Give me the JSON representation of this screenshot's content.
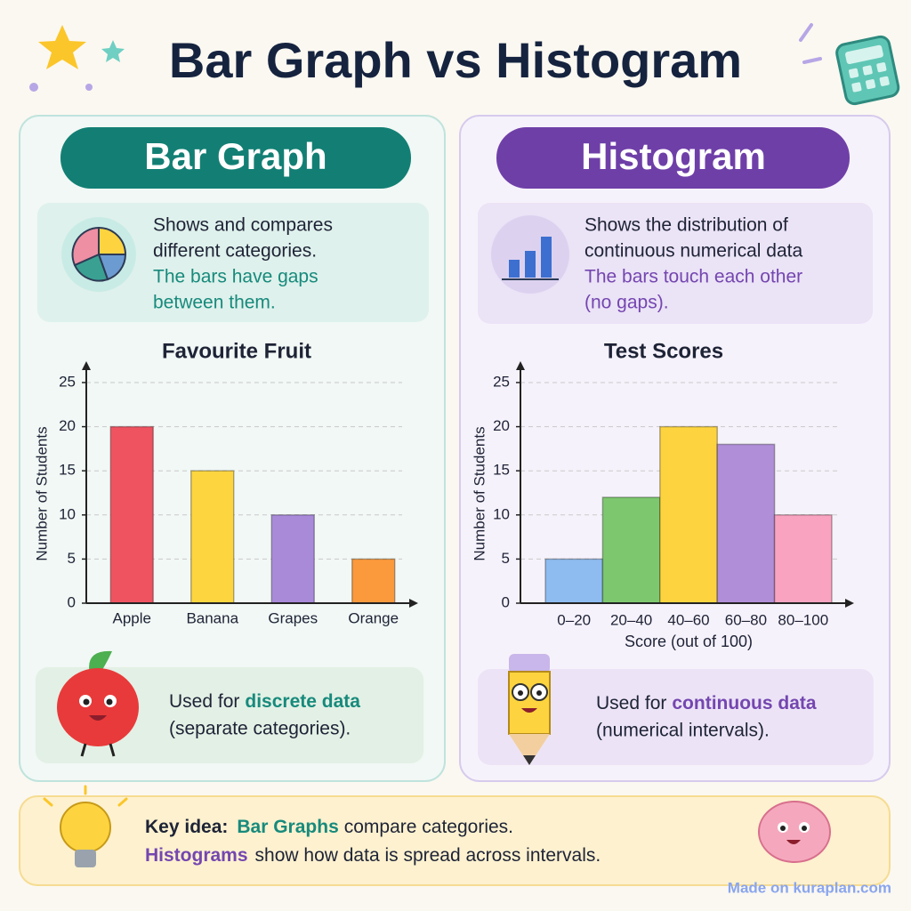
{
  "title": "Bar Graph vs Histogram",
  "panels": [
    {
      "heading": "Bar Graph",
      "description": [
        "Shows and compares",
        "different categories."
      ],
      "highlight": [
        "The bars have gaps",
        "between them."
      ],
      "note": {
        "lead": "Used for",
        "highlight": "discrete data",
        "detail": "(separate categories)."
      }
    },
    {
      "heading": "Histogram",
      "description": [
        "Shows the distribution of",
        "continuous numerical data"
      ],
      "highlight": [
        "The bars touch each other",
        "(no gaps)."
      ],
      "note": {
        "lead": "Used for",
        "highlight": "continuous data",
        "detail": "(numerical intervals)."
      }
    }
  ],
  "chart_data": [
    {
      "type": "bar",
      "title": "Favourite Fruit",
      "ylabel": "Number of Students",
      "categories": [
        "Apple",
        "Banana",
        "Grapes",
        "Orange"
      ],
      "values": [
        20,
        15,
        10,
        5
      ],
      "colors": [
        "#ef5360",
        "#fdd53f",
        "#a98ad9",
        "#fb9a3c"
      ],
      "ylim": [
        0,
        25
      ],
      "yticks": [
        0,
        5,
        10,
        15,
        20,
        25
      ],
      "grid": true
    },
    {
      "type": "histogram",
      "title": "Test Scores",
      "ylabel": "Number of Students",
      "xlabel": "Score (out of 100)",
      "categories": [
        "0–20",
        "20–40",
        "40–60",
        "60–80",
        "80–100"
      ],
      "values": [
        5,
        12,
        20,
        18,
        10
      ],
      "colors": [
        "#8ebcf0",
        "#7dc86f",
        "#fdd43f",
        "#b08ed8",
        "#f9a3c0"
      ],
      "ylim": [
        0,
        25
      ],
      "yticks": [
        0,
        5,
        10,
        15,
        20,
        25
      ],
      "grid": true
    }
  ],
  "key_idea": {
    "label": "Key idea:",
    "line1": {
      "highlight": "Bar Graphs",
      "text": "compare categories."
    },
    "line2": {
      "highlight": "Histograms",
      "text": "show how data is spread across intervals."
    }
  },
  "footer": "Made on kuraplan.com"
}
